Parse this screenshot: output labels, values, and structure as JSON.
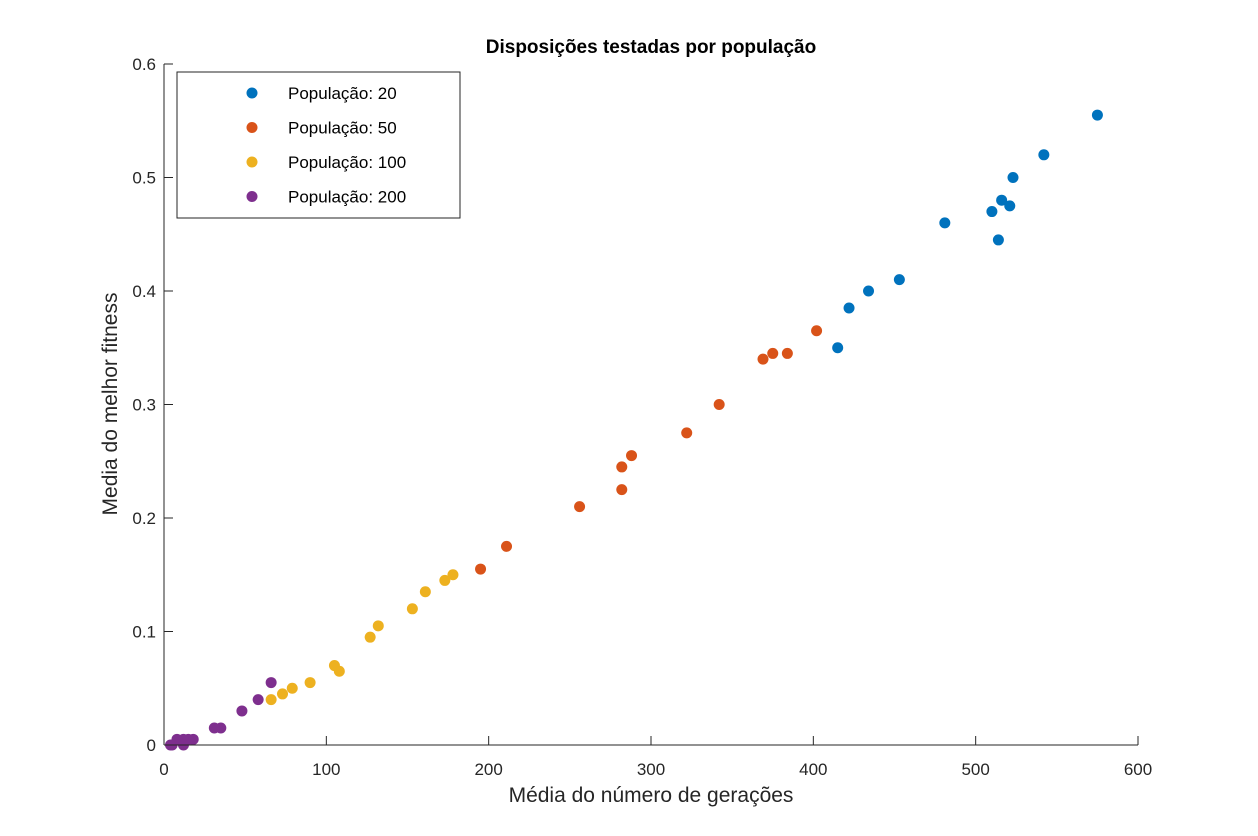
{
  "chart_data": {
    "type": "scatter",
    "title": "Disposições testadas por população",
    "xlabel": "Média do número de gerações",
    "ylabel": "Media do melhor fitness",
    "xlim": [
      0,
      600
    ],
    "ylim": [
      0,
      0.6
    ],
    "xticks": [
      "0",
      "100",
      "200",
      "300",
      "400",
      "500",
      "600"
    ],
    "yticks": [
      "0",
      "0.1",
      "0.2",
      "0.3",
      "0.4",
      "0.5",
      "0.6"
    ],
    "grid": false,
    "legend_position": "top-left",
    "series": [
      {
        "name": "População: 20",
        "color": "#0072BD",
        "points": [
          [
            575,
            0.555
          ],
          [
            542,
            0.52
          ],
          [
            523,
            0.5
          ],
          [
            516,
            0.48
          ],
          [
            521,
            0.475
          ],
          [
            510,
            0.47
          ],
          [
            514,
            0.445
          ],
          [
            481,
            0.46
          ],
          [
            453,
            0.41
          ],
          [
            434,
            0.4
          ],
          [
            422,
            0.385
          ],
          [
            415,
            0.35
          ]
        ]
      },
      {
        "name": "População: 50",
        "color": "#D95319",
        "points": [
          [
            402,
            0.365
          ],
          [
            384,
            0.345
          ],
          [
            375,
            0.345
          ],
          [
            369,
            0.34
          ],
          [
            342,
            0.3
          ],
          [
            322,
            0.275
          ],
          [
            288,
            0.255
          ],
          [
            282,
            0.245
          ],
          [
            282,
            0.225
          ],
          [
            256,
            0.21
          ],
          [
            211,
            0.175
          ],
          [
            195,
            0.155
          ]
        ]
      },
      {
        "name": "População: 100",
        "color": "#EDB120",
        "points": [
          [
            178,
            0.15
          ],
          [
            173,
            0.145
          ],
          [
            161,
            0.135
          ],
          [
            153,
            0.12
          ],
          [
            132,
            0.105
          ],
          [
            127,
            0.095
          ],
          [
            105,
            0.07
          ],
          [
            108,
            0.065
          ],
          [
            90,
            0.055
          ],
          [
            79,
            0.05
          ],
          [
            73,
            0.045
          ],
          [
            66,
            0.04
          ]
        ]
      },
      {
        "name": "População: 200",
        "color": "#7E2F8E",
        "points": [
          [
            66,
            0.055
          ],
          [
            58,
            0.04
          ],
          [
            48,
            0.03
          ],
          [
            35,
            0.015
          ],
          [
            31,
            0.015
          ],
          [
            18,
            0.005
          ],
          [
            15,
            0.005
          ],
          [
            12,
            0.005
          ],
          [
            8,
            0.005
          ],
          [
            12,
            0.0
          ],
          [
            5,
            0.0
          ],
          [
            4,
            0.0
          ]
        ]
      }
    ]
  }
}
